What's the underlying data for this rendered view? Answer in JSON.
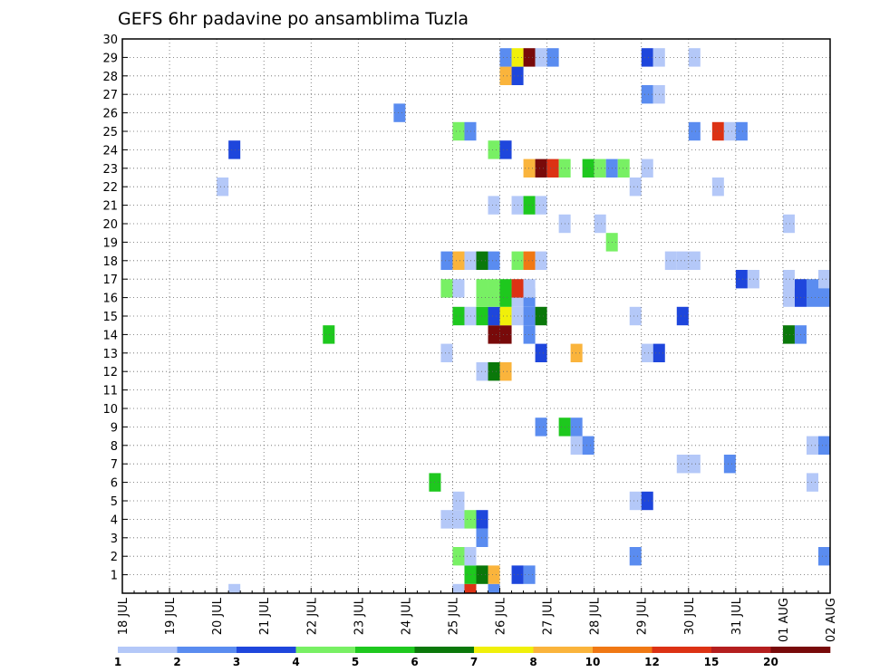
{
  "chart_data": {
    "type": "heatmap",
    "title": "GEFS 6hr padavine po ansamblima Tuzla",
    "xlabel": "",
    "ylabel": "",
    "x_ticks": [
      "18 JUL",
      "19 JUL",
      "20 JUL",
      "21 JUL",
      "22 JUL",
      "23 JUL",
      "24 JUL",
      "25 JUL",
      "26 JUL",
      "27 JUL",
      "28 JUL",
      "29 JUL",
      "30 JUL",
      "31 JUL",
      "01 AUG",
      "02 AUG"
    ],
    "x_range_days": [
      0,
      15
    ],
    "y_ticks": [
      1,
      2,
      3,
      4,
      5,
      6,
      7,
      8,
      9,
      10,
      11,
      12,
      13,
      14,
      15,
      16,
      17,
      18,
      19,
      20,
      21,
      22,
      23,
      24,
      25,
      26,
      27,
      28,
      29,
      30
    ],
    "y_range": [
      0,
      30
    ],
    "grid": true,
    "legend": {
      "placement": "bottom",
      "labels": [
        "1",
        "2",
        "3",
        "4",
        "5",
        "6",
        "7",
        "8",
        "10",
        "12",
        "15",
        "20"
      ],
      "colors": [
        "#b4c8f8",
        "#5a8cf0",
        "#1e46dc",
        "#78f064",
        "#1ec81e",
        "#0a780a",
        "#f0f00a",
        "#fab43c",
        "#f07814",
        "#dc3214",
        "#b41e1e",
        "#780a0a"
      ]
    },
    "cells_note": "x = day offset from 18 JUL 00Z in 6-hour steps, y = ensemble member, c = colour class index into legend.colors",
    "cells": [
      {
        "x": 7.75,
        "y": 0,
        "c": 1
      },
      {
        "x": 7.0,
        "y": 0,
        "c": 0
      },
      {
        "x": 7.25,
        "y": 0,
        "c": 9
      },
      {
        "x": 2.25,
        "y": 0,
        "c": 0
      },
      {
        "x": 7.25,
        "y": 1,
        "c": 4
      },
      {
        "x": 7.5,
        "y": 1,
        "c": 5
      },
      {
        "x": 7.75,
        "y": 1,
        "c": 7
      },
      {
        "x": 8.25,
        "y": 1,
        "c": 2
      },
      {
        "x": 8.5,
        "y": 1,
        "c": 1
      },
      {
        "x": 7.0,
        "y": 2,
        "c": 3
      },
      {
        "x": 7.25,
        "y": 2,
        "c": 0
      },
      {
        "x": 10.75,
        "y": 2,
        "c": 1
      },
      {
        "x": 14.75,
        "y": 2,
        "c": 1
      },
      {
        "x": 7.5,
        "y": 3,
        "c": 1
      },
      {
        "x": 6.75,
        "y": 4,
        "c": 0
      },
      {
        "x": 7.0,
        "y": 4,
        "c": 0
      },
      {
        "x": 7.25,
        "y": 4,
        "c": 3
      },
      {
        "x": 7.5,
        "y": 4,
        "c": 2
      },
      {
        "x": 7.0,
        "y": 5,
        "c": 0
      },
      {
        "x": 10.75,
        "y": 5,
        "c": 0
      },
      {
        "x": 11.0,
        "y": 5,
        "c": 2
      },
      {
        "x": 6.5,
        "y": 6,
        "c": 4
      },
      {
        "x": 14.5,
        "y": 6,
        "c": 0
      },
      {
        "x": 11.75,
        "y": 7,
        "c": 0
      },
      {
        "x": 12.0,
        "y": 7,
        "c": 0
      },
      {
        "x": 12.75,
        "y": 7,
        "c": 1
      },
      {
        "x": 9.5,
        "y": 8,
        "c": 0
      },
      {
        "x": 9.75,
        "y": 8,
        "c": 1
      },
      {
        "x": 14.5,
        "y": 8,
        "c": 0
      },
      {
        "x": 14.75,
        "y": 8,
        "c": 1
      },
      {
        "x": 8.75,
        "y": 9,
        "c": 1
      },
      {
        "x": 9.25,
        "y": 9,
        "c": 4
      },
      {
        "x": 9.5,
        "y": 9,
        "c": 1
      },
      {
        "x": 7.5,
        "y": 12,
        "c": 0
      },
      {
        "x": 7.75,
        "y": 12,
        "c": 5
      },
      {
        "x": 8.0,
        "y": 12,
        "c": 7
      },
      {
        "x": 6.75,
        "y": 13,
        "c": 0
      },
      {
        "x": 8.75,
        "y": 13,
        "c": 2
      },
      {
        "x": 9.5,
        "y": 13,
        "c": 7
      },
      {
        "x": 11.0,
        "y": 13,
        "c": 0
      },
      {
        "x": 11.25,
        "y": 13,
        "c": 2
      },
      {
        "x": 4.25,
        "y": 14,
        "c": 4
      },
      {
        "x": 7.75,
        "y": 14,
        "c": 11
      },
      {
        "x": 8.0,
        "y": 14,
        "c": 11
      },
      {
        "x": 8.5,
        "y": 14,
        "c": 1
      },
      {
        "x": 14.0,
        "y": 14,
        "c": 5
      },
      {
        "x": 14.25,
        "y": 14,
        "c": 1
      },
      {
        "x": 7.0,
        "y": 15,
        "c": 4
      },
      {
        "x": 7.25,
        "y": 15,
        "c": 0
      },
      {
        "x": 7.5,
        "y": 15,
        "c": 4
      },
      {
        "x": 7.75,
        "y": 15,
        "c": 2
      },
      {
        "x": 8.0,
        "y": 15,
        "c": 6
      },
      {
        "x": 8.25,
        "y": 15,
        "c": 0
      },
      {
        "x": 8.5,
        "y": 15,
        "c": 1
      },
      {
        "x": 8.75,
        "y": 15,
        "c": 5
      },
      {
        "x": 10.75,
        "y": 15,
        "c": 0
      },
      {
        "x": 11.75,
        "y": 15,
        "c": 2
      },
      {
        "x": 7.5,
        "y": 16,
        "c": 3
      },
      {
        "x": 7.75,
        "y": 16,
        "c": 3
      },
      {
        "x": 8.0,
        "y": 16,
        "c": 4
      },
      {
        "x": 8.25,
        "y": 16,
        "c": 0
      },
      {
        "x": 8.5,
        "y": 16,
        "c": 1
      },
      {
        "x": 14.0,
        "y": 16,
        "c": 0
      },
      {
        "x": 14.25,
        "y": 16,
        "c": 2
      },
      {
        "x": 14.5,
        "y": 16,
        "c": 1
      },
      {
        "x": 14.75,
        "y": 16,
        "c": 1
      },
      {
        "x": 6.75,
        "y": 16.5,
        "c": 3
      },
      {
        "x": 7.0,
        "y": 16.5,
        "c": 0
      },
      {
        "x": 7.5,
        "y": 16.5,
        "c": 3
      },
      {
        "x": 7.75,
        "y": 16.5,
        "c": 3
      },
      {
        "x": 8.0,
        "y": 16.5,
        "c": 4
      },
      {
        "x": 8.25,
        "y": 16.5,
        "c": 9
      },
      {
        "x": 8.5,
        "y": 16.5,
        "c": 0
      },
      {
        "x": 14.0,
        "y": 16.5,
        "c": 0
      },
      {
        "x": 14.25,
        "y": 16.5,
        "c": 2
      },
      {
        "x": 14.5,
        "y": 16.5,
        "c": 1
      },
      {
        "x": 14.75,
        "y": 16.5,
        "c": 1
      },
      {
        "x": 13.0,
        "y": 17,
        "c": 2
      },
      {
        "x": 13.25,
        "y": 17,
        "c": 0
      },
      {
        "x": 14.0,
        "y": 17,
        "c": 0
      },
      {
        "x": 14.75,
        "y": 17,
        "c": 0
      },
      {
        "x": 15.0,
        "y": 17,
        "c": 3
      },
      {
        "x": 6.75,
        "y": 18,
        "c": 1
      },
      {
        "x": 7.0,
        "y": 18,
        "c": 7
      },
      {
        "x": 7.25,
        "y": 18,
        "c": 0
      },
      {
        "x": 7.5,
        "y": 18,
        "c": 5
      },
      {
        "x": 7.75,
        "y": 18,
        "c": 1
      },
      {
        "x": 8.25,
        "y": 18,
        "c": 3
      },
      {
        "x": 8.5,
        "y": 18,
        "c": 8
      },
      {
        "x": 8.75,
        "y": 18,
        "c": 0
      },
      {
        "x": 11.5,
        "y": 18,
        "c": 0
      },
      {
        "x": 11.75,
        "y": 18,
        "c": 0
      },
      {
        "x": 12.0,
        "y": 18,
        "c": 0
      },
      {
        "x": 10.25,
        "y": 19,
        "c": 3
      },
      {
        "x": 9.25,
        "y": 20,
        "c": 0
      },
      {
        "x": 10.0,
        "y": 20,
        "c": 0
      },
      {
        "x": 14.0,
        "y": 20,
        "c": 0
      },
      {
        "x": 7.75,
        "y": 21,
        "c": 0
      },
      {
        "x": 8.25,
        "y": 21,
        "c": 0
      },
      {
        "x": 8.5,
        "y": 21,
        "c": 4
      },
      {
        "x": 8.75,
        "y": 21,
        "c": 0
      },
      {
        "x": 2.0,
        "y": 22,
        "c": 0
      },
      {
        "x": 10.75,
        "y": 22,
        "c": 0
      },
      {
        "x": 12.5,
        "y": 22,
        "c": 0
      },
      {
        "x": 8.5,
        "y": 23,
        "c": 7
      },
      {
        "x": 8.75,
        "y": 23,
        "c": 11
      },
      {
        "x": 9.0,
        "y": 23,
        "c": 9
      },
      {
        "x": 9.25,
        "y": 23,
        "c": 3
      },
      {
        "x": 9.75,
        "y": 23,
        "c": 4
      },
      {
        "x": 10.0,
        "y": 23,
        "c": 3
      },
      {
        "x": 10.25,
        "y": 23,
        "c": 1
      },
      {
        "x": 10.5,
        "y": 23,
        "c": 3
      },
      {
        "x": 11.0,
        "y": 23,
        "c": 0
      },
      {
        "x": 2.25,
        "y": 24,
        "c": 2
      },
      {
        "x": 7.75,
        "y": 24,
        "c": 3
      },
      {
        "x": 8.0,
        "y": 24,
        "c": 2
      },
      {
        "x": 7.0,
        "y": 25,
        "c": 3
      },
      {
        "x": 7.25,
        "y": 25,
        "c": 1
      },
      {
        "x": 12.0,
        "y": 25,
        "c": 1
      },
      {
        "x": 12.5,
        "y": 25,
        "c": 9
      },
      {
        "x": 12.75,
        "y": 25,
        "c": 0
      },
      {
        "x": 13.0,
        "y": 25,
        "c": 1
      },
      {
        "x": 5.75,
        "y": 26,
        "c": 1
      },
      {
        "x": 11.0,
        "y": 27,
        "c": 1
      },
      {
        "x": 11.25,
        "y": 27,
        "c": 0
      },
      {
        "x": 8.0,
        "y": 28,
        "c": 7
      },
      {
        "x": 8.25,
        "y": 28,
        "c": 2
      },
      {
        "x": 8.0,
        "y": 29,
        "c": 1
      },
      {
        "x": 8.25,
        "y": 29,
        "c": 6
      },
      {
        "x": 8.5,
        "y": 29,
        "c": 11
      },
      {
        "x": 8.75,
        "y": 29,
        "c": 0
      },
      {
        "x": 9.0,
        "y": 29,
        "c": 1
      },
      {
        "x": 11.0,
        "y": 29,
        "c": 2
      },
      {
        "x": 11.25,
        "y": 29,
        "c": 0
      },
      {
        "x": 12.0,
        "y": 29,
        "c": 0
      }
    ]
  }
}
